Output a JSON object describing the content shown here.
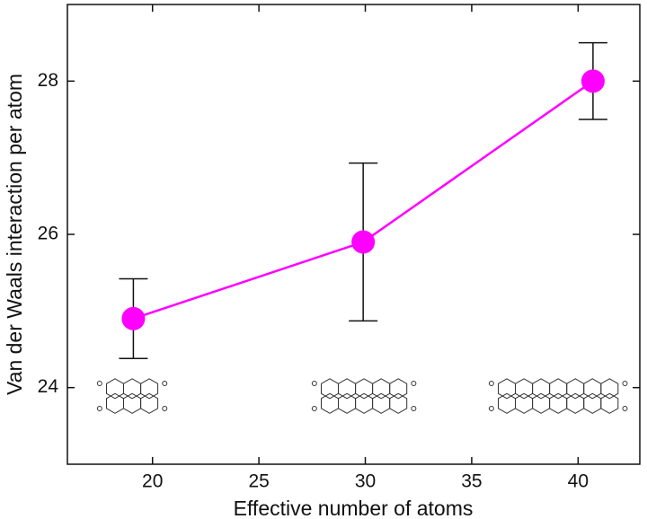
{
  "chart_data": {
    "type": "line",
    "x_label": "Effective number of atoms",
    "y_label": "Van der Waals interaction per atom",
    "x": [
      19.1,
      29.9,
      40.7
    ],
    "series": [
      {
        "color": "#ff00ff",
        "values": [
          24.9,
          25.9,
          28.0
        ],
        "errors": [
          0.52,
          1.03,
          0.5
        ]
      }
    ],
    "xlim": [
      16,
      42.9
    ],
    "xticks": [
      20,
      25,
      30,
      35,
      40
    ],
    "ylim": [
      23,
      29
    ],
    "yticks": [
      24,
      26,
      28
    ],
    "grid": false
  }
}
